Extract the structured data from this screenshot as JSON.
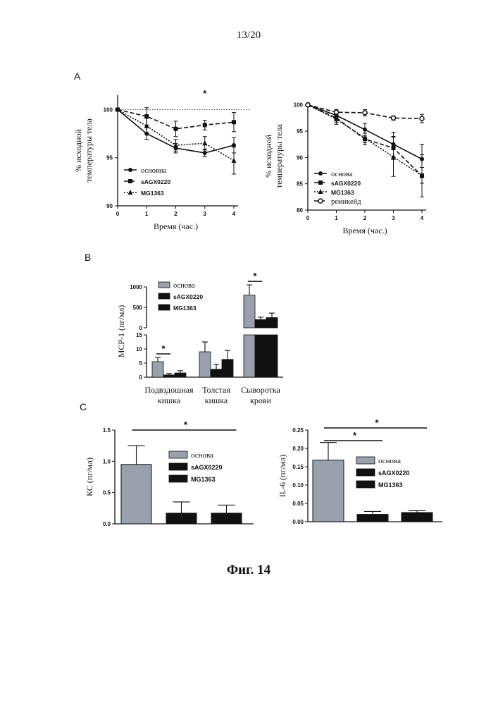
{
  "page_number": "13/20",
  "figure_caption": "Фиг. 14",
  "colors": {
    "ink": "#111111",
    "gray_bar": "#9aa1ad",
    "black_bar": "#111111"
  },
  "chart_data": [
    {
      "id": "A_left",
      "panel_label": "A",
      "type": "line",
      "xlabel": "Время (час.)",
      "ylabel": [
        "% исходной",
        "температуры тела"
      ],
      "x": [
        0,
        1,
        2,
        3,
        4
      ],
      "xlim": [
        0,
        4
      ],
      "ylim": [
        90,
        101.5
      ],
      "yticks": [
        90,
        95,
        100
      ],
      "reference_line": 100,
      "significance": [
        {
          "x": 3,
          "label": "*"
        }
      ],
      "legend_placement": "bottom-left",
      "series": [
        {
          "name": "основна",
          "marker": "circle",
          "line": "solid",
          "values": [
            100,
            97.5,
            96,
            95.5,
            96.3
          ],
          "errors": [
            0,
            0.6,
            0.5,
            0.4,
            0.8
          ]
        },
        {
          "name": "sAGX0220",
          "marker": "square",
          "line": "dashed",
          "values": [
            100,
            99.3,
            98,
            98.4,
            98.7
          ],
          "errors": [
            0,
            0.9,
            0.8,
            0.5,
            1.0
          ]
        },
        {
          "name": "MG1363",
          "marker": "triangle",
          "line": "dotted",
          "values": [
            100,
            98.3,
            96.3,
            96.5,
            94.7
          ],
          "errors": [
            0,
            0.8,
            0.6,
            0.7,
            1.4
          ]
        }
      ]
    },
    {
      "id": "A_right",
      "panel_label": "",
      "type": "line",
      "xlabel": "Время (час.)",
      "ylabel": [
        "% исходной",
        "температуры тела"
      ],
      "x": [
        0,
        1,
        2,
        3,
        4
      ],
      "xlim": [
        0,
        4
      ],
      "ylim": [
        80,
        100.5
      ],
      "yticks": [
        80,
        85,
        90,
        95,
        100
      ],
      "legend_placement": "bottom-left",
      "series": [
        {
          "name": "основа",
          "marker": "circle",
          "line": "solid",
          "values": [
            100,
            98,
            95.3,
            92.5,
            89.7
          ],
          "errors": [
            0,
            0.8,
            1.2,
            2.3,
            2.8
          ]
        },
        {
          "name": "sAGX0220",
          "marker": "square",
          "line": "dashed",
          "values": [
            100,
            97.5,
            93.5,
            91.8,
            86.5
          ],
          "errors": [
            0,
            0.8,
            1.1,
            2.2,
            4.0
          ]
        },
        {
          "name": "MG1363",
          "marker": "triangle",
          "line": "dotted",
          "values": [
            100,
            97.3,
            93.7,
            90.1,
            86.6
          ],
          "errors": [
            0,
            1.0,
            0.9,
            3.7,
            1.5
          ]
        },
        {
          "name": "ремикейд",
          "marker": "open-circle",
          "line": "dashed",
          "values": [
            100,
            98.6,
            98.5,
            97.5,
            97.4
          ],
          "errors": [
            0,
            0.5,
            0.6,
            0.4,
            0.8
          ]
        }
      ]
    },
    {
      "id": "B",
      "panel_label": "B",
      "type": "bar",
      "ylabel": "МСР-1 (пг/мл)",
      "categories": [
        [
          "Подвздошная",
          "кишка"
        ],
        [
          "Толстая",
          "кишка"
        ],
        [
          "Сыворотка",
          "крови"
        ]
      ],
      "broken_axis": {
        "lower_ylim": [
          0,
          15
        ],
        "lower_yticks": [
          0,
          5,
          10,
          15
        ],
        "upper_ylim": [
          0,
          1000
        ],
        "upper_yticks": [
          0,
          500,
          1000
        ]
      },
      "series": [
        {
          "name": "основа",
          "color": "gray",
          "values": [
            5.5,
            9,
            800
          ],
          "errors": [
            1.5,
            3.5,
            250
          ]
        },
        {
          "name": "sAGX0220",
          "color": "black",
          "values": [
            0.8,
            2.8,
            200
          ],
          "errors": [
            0.5,
            1.8,
            60
          ]
        },
        {
          "name": "MG1363",
          "color": "black",
          "values": [
            1.5,
            6.3,
            250
          ],
          "errors": [
            0.8,
            3.2,
            110
          ]
        }
      ],
      "significance": [
        {
          "category": 0,
          "label": "*"
        },
        {
          "category": 2,
          "label": "*"
        }
      ],
      "legend_placement": "top-left"
    },
    {
      "id": "C_left",
      "panel_label": "C",
      "type": "bar",
      "ylabel": "КС (пг/мл)",
      "ylim": [
        0,
        1.5
      ],
      "yticks": [
        "0.0",
        "0.5",
        "1.0",
        "1.5"
      ],
      "series": [
        {
          "name": "основа",
          "color": "gray",
          "value": 0.95,
          "error": 0.3
        },
        {
          "name": "sAGX0220",
          "color": "black",
          "value": 0.17,
          "error": 0.18
        },
        {
          "name": "MG1363",
          "color": "black",
          "value": 0.17,
          "error": 0.13
        }
      ],
      "significance": [
        {
          "from": 0,
          "to": 2,
          "label": "*"
        }
      ],
      "legend_placement": "top-right"
    },
    {
      "id": "C_right",
      "panel_label": "",
      "type": "bar",
      "ylabel": "IL-6 (пг/мл)",
      "ylim": [
        0,
        0.25
      ],
      "yticks": [
        "0.00",
        "0.05",
        "0.10",
        "0.15",
        "0.20",
        "0.25"
      ],
      "series": [
        {
          "name": "основа",
          "color": "gray",
          "value": 0.168,
          "error": 0.048
        },
        {
          "name": "sAGX0220",
          "color": "black",
          "value": 0.02,
          "error": 0.008
        },
        {
          "name": "MG1363",
          "color": "black",
          "value": 0.025,
          "error": 0.005
        }
      ],
      "significance": [
        {
          "from": 0,
          "to": 1,
          "label": "*"
        },
        {
          "from": 0,
          "to": 2,
          "label": "*"
        }
      ],
      "legend_placement": "top-right"
    }
  ]
}
